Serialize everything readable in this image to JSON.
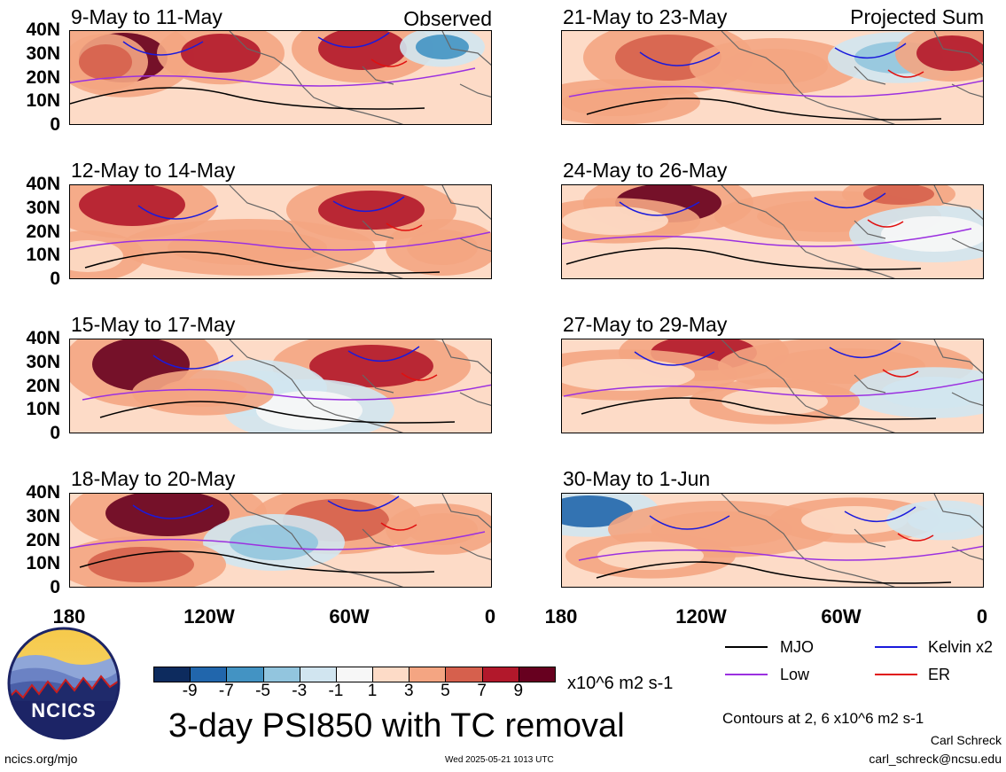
{
  "header": {
    "left_label": "Observed",
    "right_label": "Projected Sum"
  },
  "panels_left": [
    {
      "title": "9-May to 11-May"
    },
    {
      "title": "12-May to 14-May"
    },
    {
      "title": "15-May to 17-May"
    },
    {
      "title": "18-May to 20-May"
    }
  ],
  "panels_right": [
    {
      "title": "21-May to 23-May"
    },
    {
      "title": "24-May to 26-May"
    },
    {
      "title": "27-May to 29-May"
    },
    {
      "title": "30-May to 1-Jun"
    }
  ],
  "lat_labels": [
    "40N",
    "30N",
    "20N",
    "10N",
    "0"
  ],
  "lon_labels": [
    "180",
    "120W",
    "60W",
    "0"
  ],
  "colorbar": {
    "colors": [
      "#0d2b5e",
      "#2166ac",
      "#4393c3",
      "#92c5de",
      "#d1e5f0",
      "#f7f7f7",
      "#fddbc7",
      "#f4a582",
      "#d6604d",
      "#b2182b",
      "#67001f"
    ],
    "labels": [
      "-9",
      "-7",
      "-5",
      "-3",
      "-1",
      "1",
      "3",
      "5",
      "7",
      "9"
    ],
    "units": "x10^6 m2 s-1"
  },
  "legend": {
    "items": [
      {
        "label": "MJO",
        "color": "#000000"
      },
      {
        "label": "Kelvin x2",
        "color": "#1a1adc"
      },
      {
        "label": "Low",
        "color": "#9b30e0"
      },
      {
        "label": "ER",
        "color": "#e01010"
      }
    ]
  },
  "main_title": "3-day PSI850 with TC removal",
  "contours_note": "Contours at 2, 6 x10^6 m2 s-1",
  "author": "Carl Schreck",
  "email": "carl_schreck@ncsu.edu",
  "url": "ncics.org/mjo",
  "timestamp": "Wed 2025-05-21 1013 UTC",
  "logo": {
    "text": "NCICS"
  }
}
